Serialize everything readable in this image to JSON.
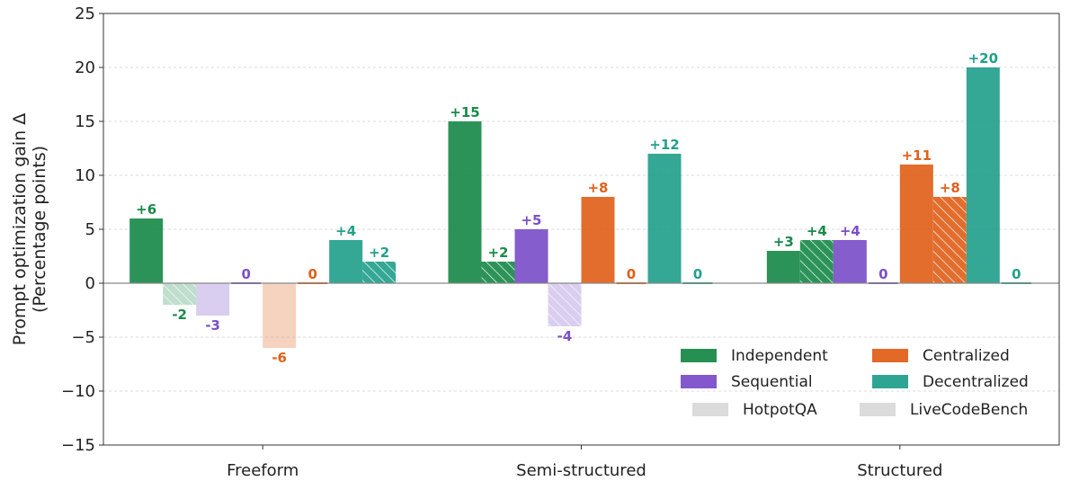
{
  "chart_data": {
    "type": "bar",
    "title": "",
    "xlabel": "",
    "ylabel": "Prompt optimization gain Δ",
    "ylabel_sub": "(Percentage points)",
    "ylim": [
      -15,
      25
    ],
    "yticks": [
      -15,
      -10,
      -5,
      0,
      5,
      10,
      15,
      20,
      25
    ],
    "ytick_labels": [
      "−15",
      "−10",
      "−5",
      "0",
      "5",
      "10",
      "15",
      "20",
      "25"
    ],
    "grid": true,
    "legend_position": "bottom-right",
    "categories": [
      "Freeform",
      "Semi-structured",
      "Structured"
    ],
    "architectures": [
      {
        "name": "Independent",
        "color": "#1a8a4a"
      },
      {
        "name": "Sequential",
        "color": "#7b4fc9"
      },
      {
        "name": "Centralized",
        "color": "#e0611a"
      },
      {
        "name": "Decentralized",
        "color": "#23a08c"
      }
    ],
    "benchmarks": [
      {
        "name": "HotpotQA",
        "pattern": "solid"
      },
      {
        "name": "LiveCodeBench",
        "pattern": "hatched"
      }
    ],
    "series": [
      {
        "architecture": "Independent",
        "benchmark": "HotpotQA",
        "values": [
          6,
          15,
          3
        ],
        "labels": [
          "+6",
          "+15",
          "+3"
        ]
      },
      {
        "architecture": "Independent",
        "benchmark": "LiveCodeBench",
        "values": [
          -2,
          2,
          4
        ],
        "labels": [
          "-2",
          "+2",
          "+4"
        ]
      },
      {
        "architecture": "Sequential",
        "benchmark": "HotpotQA",
        "values": [
          -3,
          5,
          4
        ],
        "labels": [
          "-3",
          "+5",
          "+4"
        ]
      },
      {
        "architecture": "Sequential",
        "benchmark": "LiveCodeBench",
        "values": [
          0,
          -4,
          0
        ],
        "labels": [
          "0",
          "-4",
          "0"
        ]
      },
      {
        "architecture": "Centralized",
        "benchmark": "HotpotQA",
        "values": [
          -6,
          8,
          11
        ],
        "labels": [
          "-6",
          "+8",
          "+11"
        ]
      },
      {
        "architecture": "Centralized",
        "benchmark": "LiveCodeBench",
        "values": [
          0,
          0,
          8
        ],
        "labels": [
          "0",
          "0",
          "+8"
        ]
      },
      {
        "architecture": "Decentralized",
        "benchmark": "HotpotQA",
        "values": [
          4,
          12,
          20
        ],
        "labels": [
          "+4",
          "+12",
          "+20"
        ]
      },
      {
        "architecture": "Decentralized",
        "benchmark": "LiveCodeBench",
        "values": [
          2,
          0,
          0
        ],
        "labels": [
          "+2",
          "0",
          "0"
        ]
      }
    ]
  }
}
